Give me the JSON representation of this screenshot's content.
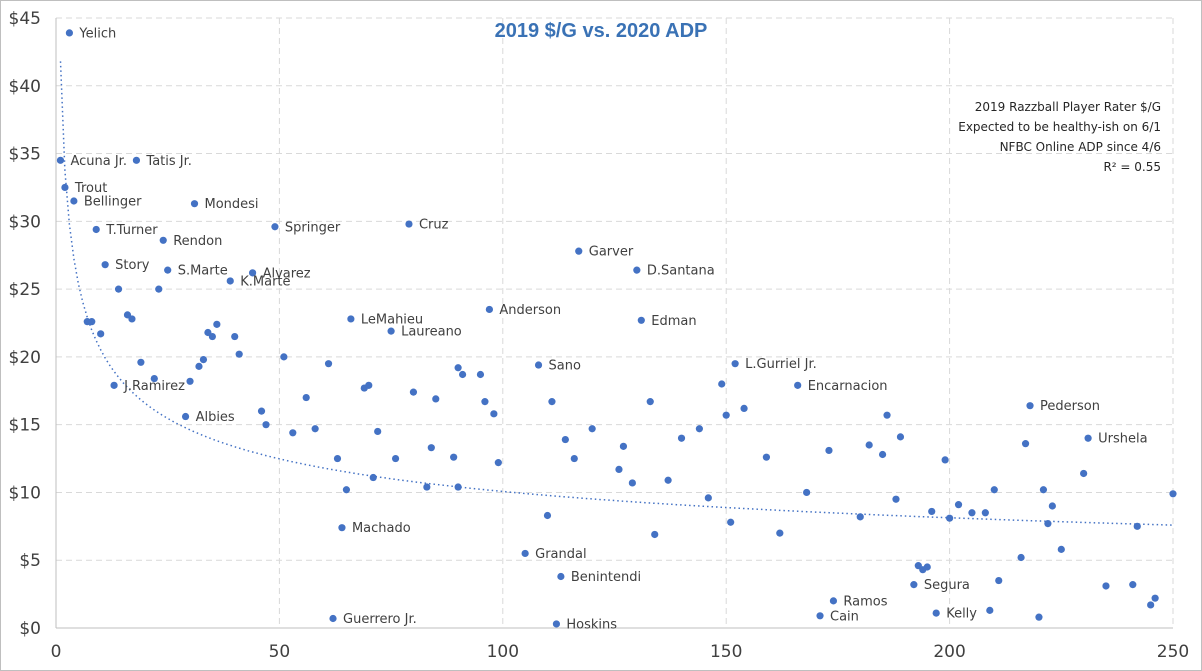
{
  "chart_data": {
    "type": "scatter",
    "title": "2019 $/G vs. 2020 ADP",
    "xlabel": "",
    "ylabel": "",
    "xlim": [
      0,
      250
    ],
    "ylim": [
      0,
      45
    ],
    "x_ticks": [
      0,
      50,
      100,
      150,
      200,
      250
    ],
    "y_ticks": [
      0,
      5,
      10,
      15,
      20,
      25,
      30,
      35,
      40,
      45
    ],
    "y_tick_labels": [
      "$0",
      "$5",
      "$10",
      "$15",
      "$20",
      "$25",
      "$30",
      "$35",
      "$40",
      "$45"
    ],
    "grid": "dashed",
    "color": "#4472c4",
    "notes": [
      "2019 Razzball Player Rater $/G",
      "Expected to be healthy-ish on 6/1",
      "NFBC Online ADP since 4/6",
      "R² = 0.55"
    ],
    "trendline": {
      "type": "power",
      "style": "dotted",
      "a": 41.8,
      "b": -0.309
    },
    "points": [
      {
        "x": 3,
        "y": 43.9,
        "label": "Yelich"
      },
      {
        "x": 1,
        "y": 34.5,
        "label": "Acuna Jr."
      },
      {
        "x": 18,
        "y": 34.5,
        "label": "Tatis Jr."
      },
      {
        "x": 2,
        "y": 32.5,
        "label": "Trout"
      },
      {
        "x": 4,
        "y": 31.5,
        "label": "Bellinger"
      },
      {
        "x": 31,
        "y": 31.3,
        "label": "Mondesi"
      },
      {
        "x": 9,
        "y": 29.4,
        "label": "T.Turner"
      },
      {
        "x": 49,
        "y": 29.6,
        "label": "Springer"
      },
      {
        "x": 79,
        "y": 29.8,
        "label": "Cruz"
      },
      {
        "x": 24,
        "y": 28.6,
        "label": "Rendon"
      },
      {
        "x": 117,
        "y": 27.8,
        "label": "Garver"
      },
      {
        "x": 11,
        "y": 26.8,
        "label": "Story"
      },
      {
        "x": 25,
        "y": 26.4,
        "label": "S.Marte"
      },
      {
        "x": 44,
        "y": 26.2,
        "label": "Alvarez"
      },
      {
        "x": 130,
        "y": 26.4,
        "label": "D.Santana"
      },
      {
        "x": 39,
        "y": 25.6,
        "label": "K.Marte"
      },
      {
        "x": 14,
        "y": 25.0,
        "label": ""
      },
      {
        "x": 23,
        "y": 25.0,
        "label": ""
      },
      {
        "x": 97,
        "y": 23.5,
        "label": "Anderson"
      },
      {
        "x": 66,
        "y": 22.8,
        "label": "LeMahieu"
      },
      {
        "x": 131,
        "y": 22.7,
        "label": "Edman"
      },
      {
        "x": 7,
        "y": 22.6,
        "label": ""
      },
      {
        "x": 8,
        "y": 22.6,
        "label": ""
      },
      {
        "x": 16,
        "y": 23.1,
        "label": ""
      },
      {
        "x": 17,
        "y": 22.8,
        "label": ""
      },
      {
        "x": 36,
        "y": 22.4,
        "label": ""
      },
      {
        "x": 10,
        "y": 21.7,
        "label": ""
      },
      {
        "x": 34,
        "y": 21.8,
        "label": ""
      },
      {
        "x": 35,
        "y": 21.5,
        "label": ""
      },
      {
        "x": 40,
        "y": 21.5,
        "label": ""
      },
      {
        "x": 75,
        "y": 21.9,
        "label": "Laureano"
      },
      {
        "x": 41,
        "y": 20.2,
        "label": ""
      },
      {
        "x": 51,
        "y": 20.0,
        "label": ""
      },
      {
        "x": 33,
        "y": 19.8,
        "label": ""
      },
      {
        "x": 19,
        "y": 19.6,
        "label": ""
      },
      {
        "x": 32,
        "y": 19.3,
        "label": ""
      },
      {
        "x": 61,
        "y": 19.5,
        "label": ""
      },
      {
        "x": 108,
        "y": 19.4,
        "label": "Sano"
      },
      {
        "x": 152,
        "y": 19.5,
        "label": "L.Gurriel Jr."
      },
      {
        "x": 90,
        "y": 19.2,
        "label": ""
      },
      {
        "x": 91,
        "y": 18.7,
        "label": ""
      },
      {
        "x": 95,
        "y": 18.7,
        "label": ""
      },
      {
        "x": 22,
        "y": 18.4,
        "label": ""
      },
      {
        "x": 13,
        "y": 17.9,
        "label": "J.Ramirez"
      },
      {
        "x": 30,
        "y": 18.2,
        "label": ""
      },
      {
        "x": 149,
        "y": 18.0,
        "label": ""
      },
      {
        "x": 166,
        "y": 17.9,
        "label": "Encarnacion"
      },
      {
        "x": 69,
        "y": 17.7,
        "label": ""
      },
      {
        "x": 70,
        "y": 17.9,
        "label": ""
      },
      {
        "x": 80,
        "y": 17.4,
        "label": ""
      },
      {
        "x": 56,
        "y": 17.0,
        "label": ""
      },
      {
        "x": 85,
        "y": 16.9,
        "label": ""
      },
      {
        "x": 96,
        "y": 16.7,
        "label": ""
      },
      {
        "x": 111,
        "y": 16.7,
        "label": ""
      },
      {
        "x": 133,
        "y": 16.7,
        "label": ""
      },
      {
        "x": 218,
        "y": 16.4,
        "label": "Pederson"
      },
      {
        "x": 154,
        "y": 16.2,
        "label": ""
      },
      {
        "x": 46,
        "y": 16.0,
        "label": ""
      },
      {
        "x": 29,
        "y": 15.6,
        "label": "Albies"
      },
      {
        "x": 98,
        "y": 15.8,
        "label": ""
      },
      {
        "x": 150,
        "y": 15.7,
        "label": ""
      },
      {
        "x": 186,
        "y": 15.7,
        "label": ""
      },
      {
        "x": 47,
        "y": 15.0,
        "label": ""
      },
      {
        "x": 58,
        "y": 14.7,
        "label": ""
      },
      {
        "x": 120,
        "y": 14.7,
        "label": ""
      },
      {
        "x": 144,
        "y": 14.7,
        "label": ""
      },
      {
        "x": 53,
        "y": 14.4,
        "label": ""
      },
      {
        "x": 72,
        "y": 14.5,
        "label": ""
      },
      {
        "x": 114,
        "y": 13.9,
        "label": ""
      },
      {
        "x": 140,
        "y": 14.0,
        "label": ""
      },
      {
        "x": 189,
        "y": 14.1,
        "label": ""
      },
      {
        "x": 231,
        "y": 14.0,
        "label": "Urshela"
      },
      {
        "x": 217,
        "y": 13.6,
        "label": ""
      },
      {
        "x": 182,
        "y": 13.5,
        "label": ""
      },
      {
        "x": 84,
        "y": 13.3,
        "label": ""
      },
      {
        "x": 127,
        "y": 13.4,
        "label": ""
      },
      {
        "x": 173,
        "y": 13.1,
        "label": ""
      },
      {
        "x": 185,
        "y": 12.8,
        "label": ""
      },
      {
        "x": 89,
        "y": 12.6,
        "label": ""
      },
      {
        "x": 63,
        "y": 12.5,
        "label": ""
      },
      {
        "x": 76,
        "y": 12.5,
        "label": ""
      },
      {
        "x": 116,
        "y": 12.5,
        "label": ""
      },
      {
        "x": 159,
        "y": 12.6,
        "label": ""
      },
      {
        "x": 199,
        "y": 12.4,
        "label": ""
      },
      {
        "x": 99,
        "y": 12.2,
        "label": ""
      },
      {
        "x": 126,
        "y": 11.7,
        "label": ""
      },
      {
        "x": 230,
        "y": 11.4,
        "label": ""
      },
      {
        "x": 71,
        "y": 11.1,
        "label": ""
      },
      {
        "x": 137,
        "y": 10.9,
        "label": ""
      },
      {
        "x": 129,
        "y": 10.7,
        "label": ""
      },
      {
        "x": 83,
        "y": 10.4,
        "label": ""
      },
      {
        "x": 90,
        "y": 10.4,
        "label": ""
      },
      {
        "x": 65,
        "y": 10.2,
        "label": ""
      },
      {
        "x": 168,
        "y": 10.0,
        "label": ""
      },
      {
        "x": 210,
        "y": 10.2,
        "label": ""
      },
      {
        "x": 221,
        "y": 10.2,
        "label": ""
      },
      {
        "x": 250,
        "y": 9.9,
        "label": ""
      },
      {
        "x": 146,
        "y": 9.6,
        "label": ""
      },
      {
        "x": 188,
        "y": 9.5,
        "label": ""
      },
      {
        "x": 202,
        "y": 9.1,
        "label": ""
      },
      {
        "x": 223,
        "y": 9.0,
        "label": ""
      },
      {
        "x": 196,
        "y": 8.6,
        "label": ""
      },
      {
        "x": 205,
        "y": 8.5,
        "label": ""
      },
      {
        "x": 208,
        "y": 8.5,
        "label": ""
      },
      {
        "x": 110,
        "y": 8.3,
        "label": ""
      },
      {
        "x": 180,
        "y": 8.2,
        "label": ""
      },
      {
        "x": 200,
        "y": 8.1,
        "label": ""
      },
      {
        "x": 151,
        "y": 7.8,
        "label": ""
      },
      {
        "x": 222,
        "y": 7.7,
        "label": ""
      },
      {
        "x": 242,
        "y": 7.5,
        "label": ""
      },
      {
        "x": 64,
        "y": 7.4,
        "label": "Machado"
      },
      {
        "x": 162,
        "y": 7.0,
        "label": ""
      },
      {
        "x": 134,
        "y": 6.9,
        "label": ""
      },
      {
        "x": 225,
        "y": 5.8,
        "label": ""
      },
      {
        "x": 105,
        "y": 5.5,
        "label": "Grandal"
      },
      {
        "x": 216,
        "y": 5.2,
        "label": ""
      },
      {
        "x": 195,
        "y": 4.5,
        "label": ""
      },
      {
        "x": 193,
        "y": 4.6,
        "label": ""
      },
      {
        "x": 194,
        "y": 4.3,
        "label": ""
      },
      {
        "x": 113,
        "y": 3.8,
        "label": "Benintendi"
      },
      {
        "x": 211,
        "y": 3.5,
        "label": ""
      },
      {
        "x": 192,
        "y": 3.2,
        "label": "Segura"
      },
      {
        "x": 235,
        "y": 3.1,
        "label": ""
      },
      {
        "x": 241,
        "y": 3.2,
        "label": ""
      },
      {
        "x": 246,
        "y": 2.2,
        "label": ""
      },
      {
        "x": 174,
        "y": 2.0,
        "label": "Ramos"
      },
      {
        "x": 245,
        "y": 1.7,
        "label": ""
      },
      {
        "x": 209,
        "y": 1.3,
        "label": ""
      },
      {
        "x": 197,
        "y": 1.1,
        "label": "Kelly"
      },
      {
        "x": 171,
        "y": 0.9,
        "label": "Cain"
      },
      {
        "x": 62,
        "y": 0.7,
        "label": "Guerrero Jr."
      },
      {
        "x": 220,
        "y": 0.8,
        "label": ""
      },
      {
        "x": 112,
        "y": 0.3,
        "label": "Hoskins"
      }
    ]
  }
}
